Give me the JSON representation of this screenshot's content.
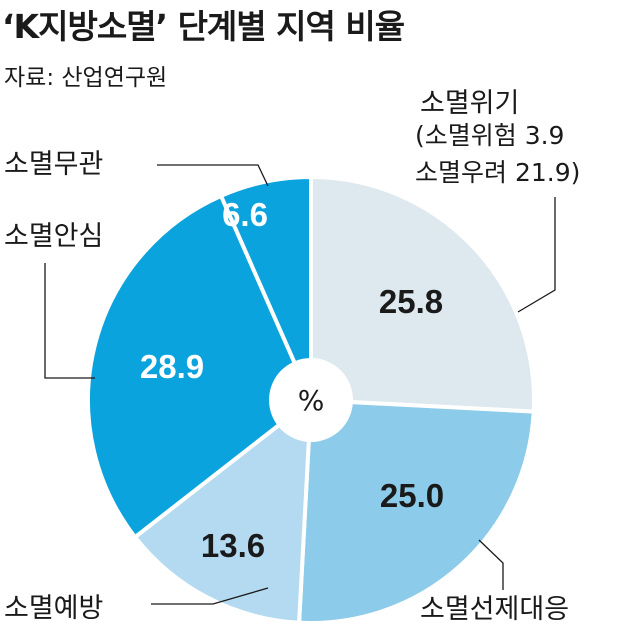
{
  "chart_data": {
    "type": "pie",
    "title": "‘K지방소멸’ 단계별 지역 비율",
    "source": "자료: 산업연구원",
    "center_label": "%",
    "slices": [
      {
        "label": "소멸위기",
        "value": 25.8,
        "value_text": "25.8",
        "color": "#dde8ef",
        "text_color": "#1a1a1a",
        "note_lines": [
          "(소멸위험 3.9",
          "소멸우려 21.9)"
        ]
      },
      {
        "label": "소멸선제대응",
        "value": 25.0,
        "value_text": "25.0",
        "color": "#8ccbe9",
        "text_color": "#1a1a1a"
      },
      {
        "label": "소멸예방",
        "value": 13.6,
        "value_text": "13.6",
        "color": "#b3daf0",
        "text_color": "#1a1a1a"
      },
      {
        "label": "소멸안심",
        "value": 28.9,
        "value_text": "28.9",
        "color": "#0aa3dd",
        "text_color": "#ffffff"
      },
      {
        "label": "소멸무관",
        "value": 6.6,
        "value_text": "6.6",
        "color": "#0aa3dd",
        "text_color": "#ffffff"
      }
    ]
  }
}
